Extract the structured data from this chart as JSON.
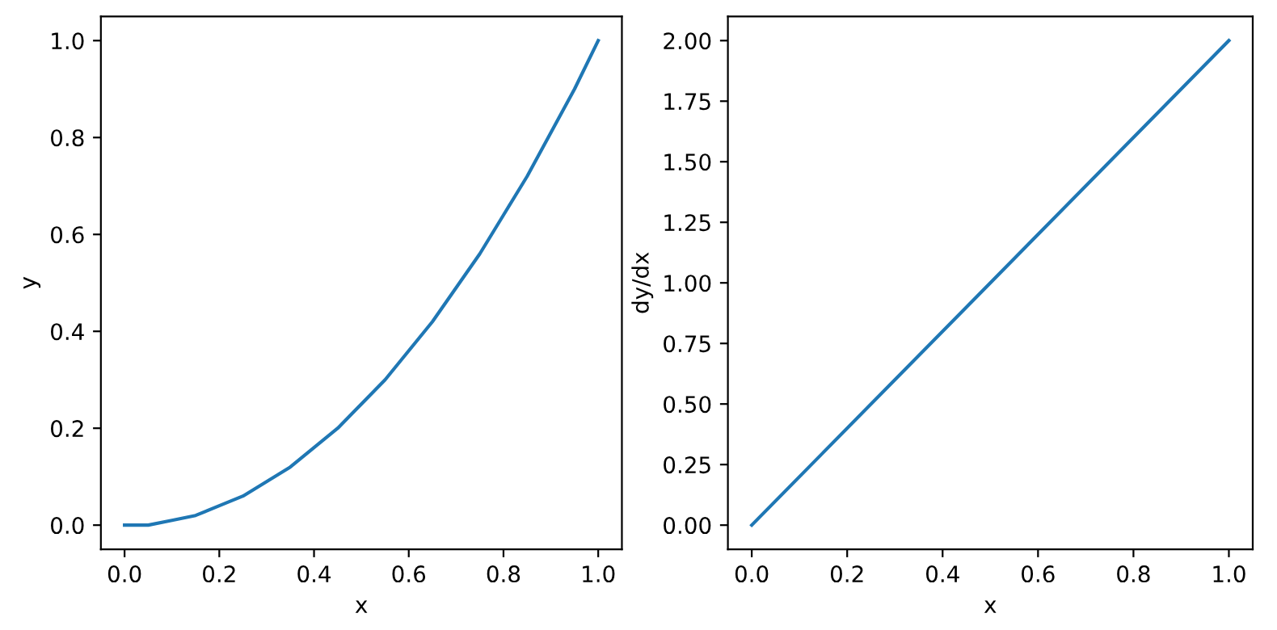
{
  "chart_data": [
    {
      "type": "line",
      "xlabel": "x",
      "ylabel": "y",
      "x": [
        0.0,
        0.05,
        0.1,
        0.15,
        0.2,
        0.25,
        0.3,
        0.35,
        0.4,
        0.45,
        0.5,
        0.55,
        0.6,
        0.65,
        0.7,
        0.75,
        0.8,
        0.85,
        0.9,
        0.95,
        1.0
      ],
      "series": [
        {
          "color": "#1f77b4",
          "values": [
            0.0,
            0.0,
            0.01,
            0.02,
            0.04,
            0.06,
            0.09,
            0.12,
            0.16,
            0.2,
            0.25,
            0.3,
            0.36,
            0.42,
            0.49,
            0.56,
            0.64,
            0.72,
            0.81,
            0.9,
            1.0
          ]
        }
      ],
      "xlim": [
        -0.05,
        1.05
      ],
      "ylim": [
        -0.05,
        1.05
      ],
      "xticks": [
        {
          "value": 0,
          "label": "0.0"
        },
        {
          "value": 0.2,
          "label": "0.2"
        },
        {
          "value": 0.4,
          "label": "0.4"
        },
        {
          "value": 0.6,
          "label": "0.6"
        },
        {
          "value": 0.8,
          "label": "0.8"
        },
        {
          "value": 1,
          "label": "1.0"
        }
      ],
      "yticks": [
        {
          "value": 0,
          "label": "0.0"
        },
        {
          "value": 0.2,
          "label": "0.2"
        },
        {
          "value": 0.4,
          "label": "0.4"
        },
        {
          "value": 0.6,
          "label": "0.6"
        },
        {
          "value": 0.8,
          "label": "0.8"
        },
        {
          "value": 1,
          "label": "1.0"
        }
      ],
      "grid": false,
      "legend": false,
      "line_style": "solid",
      "marker": "none"
    },
    {
      "type": "line",
      "xlabel": "x",
      "ylabel": "dy/dx",
      "x": [
        0.0,
        0.5,
        1.0
      ],
      "series": [
        {
          "color": "#1f77b4",
          "values": [
            0.0,
            1.0,
            2.0
          ]
        }
      ],
      "xlim": [
        -0.05,
        1.05
      ],
      "ylim": [
        -0.1,
        2.1
      ],
      "xticks": [
        {
          "value": 0,
          "label": "0.0"
        },
        {
          "value": 0.2,
          "label": "0.2"
        },
        {
          "value": 0.4,
          "label": "0.4"
        },
        {
          "value": 0.6,
          "label": "0.6"
        },
        {
          "value": 0.8,
          "label": "0.8"
        },
        {
          "value": 1,
          "label": "1.0"
        }
      ],
      "yticks": [
        {
          "value": 0,
          "label": "0.00"
        },
        {
          "value": 0.25,
          "label": "0.25"
        },
        {
          "value": 0.5,
          "label": "0.50"
        },
        {
          "value": 0.75,
          "label": "0.75"
        },
        {
          "value": 1,
          "label": "1.00"
        },
        {
          "value": 1.25,
          "label": "1.25"
        },
        {
          "value": 1.5,
          "label": "1.50"
        },
        {
          "value": 1.75,
          "label": "1.75"
        },
        {
          "value": 2,
          "label": "2.00"
        }
      ],
      "grid": false,
      "legend": false,
      "line_style": "solid",
      "marker": "none"
    }
  ]
}
